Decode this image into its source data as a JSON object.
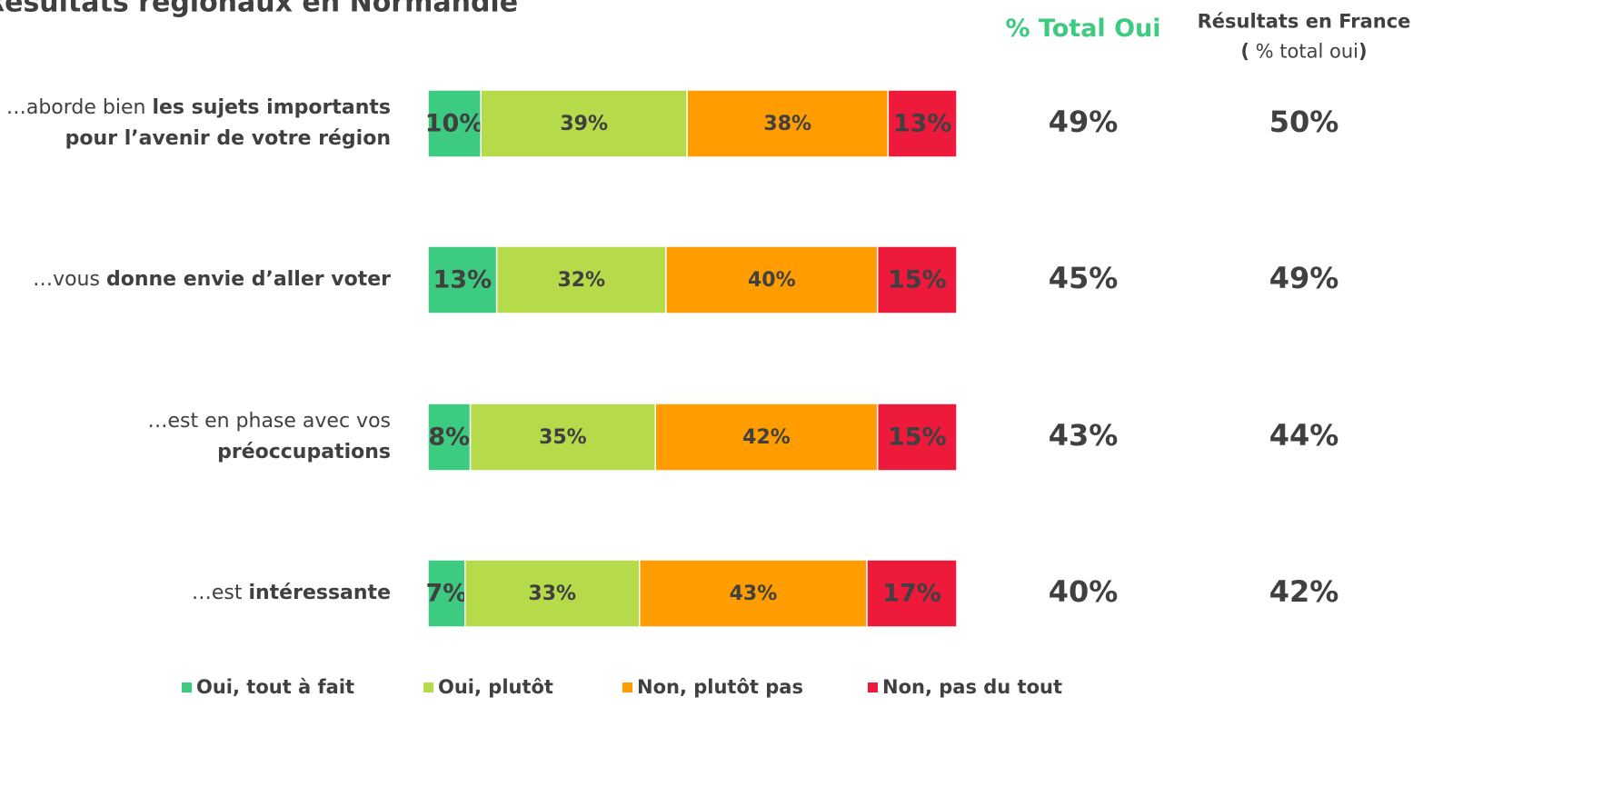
{
  "chart_data": {
    "type": "stacked_bar_h",
    "title": "Résultats régionaux en Normandie",
    "categories": [
      {
        "lines": [
          [
            {
              "text": "…aborde bien ",
              "bold": false
            },
            {
              "text": "les sujets importants",
              "bold": true
            }
          ],
          [
            {
              "text": "pour l’avenir de votre région",
              "bold": true
            }
          ]
        ]
      },
      {
        "lines": [
          [
            {
              "text": "…vous ",
              "bold": false
            },
            {
              "text": "donne envie d’aller voter",
              "bold": true
            }
          ]
        ]
      },
      {
        "lines": [
          [
            {
              "text": "…est en phase avec vos",
              "bold": false
            }
          ],
          [
            {
              "text": "préoccupations",
              "bold": true
            }
          ]
        ]
      },
      {
        "lines": [
          [
            {
              "text": "…est ",
              "bold": false
            },
            {
              "text": "intéressante",
              "bold": true
            }
          ]
        ]
      }
    ],
    "xlim": [
      0,
      100
    ],
    "series": [
      {
        "name": "Oui, tout à fait",
        "color": "#3ccb80",
        "label_color": "#ffffff",
        "values": [
          10,
          13,
          8,
          7
        ],
        "value_labels": [
          "10%",
          "13%",
          "8%",
          "7%"
        ]
      },
      {
        "name": "Oui, plutôt",
        "color": "#b5da4a",
        "label_color": "#404040",
        "values": [
          39,
          32,
          35,
          33
        ],
        "value_labels": [
          "39%",
          "32%",
          "35%",
          "33%"
        ]
      },
      {
        "name": "Non, plutôt pas",
        "color": "#ff9c00",
        "label_color": "#404040",
        "values": [
          38,
          40,
          42,
          43
        ],
        "value_labels": [
          "38%",
          "40%",
          "42%",
          "43%"
        ]
      },
      {
        "name": "Non, pas du tout",
        "color": "#ee1a3c",
        "label_color": "#ffffff",
        "values": [
          13,
          15,
          15,
          17
        ],
        "value_labels": [
          "13%",
          "15%",
          "15%",
          "17%"
        ]
      }
    ],
    "columns": [
      {
        "header": [
          [
            {
              "text": "% Total Oui",
              "bold": true
            }
          ]
        ],
        "color": "#3ccb80",
        "values": [
          49,
          45,
          43,
          40
        ],
        "value_labels": [
          "49%",
          "45%",
          "43%",
          "40%"
        ]
      },
      {
        "header": [
          [
            {
              "text": "Résultats en France",
              "bold": true
            }
          ],
          [
            {
              "text": "(",
              "bold": true
            },
            {
              "text": " % total oui",
              "bold": false
            },
            {
              "text": ")",
              "bold": true
            }
          ]
        ],
        "color": "#404040",
        "values": [
          50,
          49,
          44,
          42
        ],
        "value_labels": [
          "50%",
          "49%",
          "44%",
          "42%"
        ]
      }
    ]
  }
}
